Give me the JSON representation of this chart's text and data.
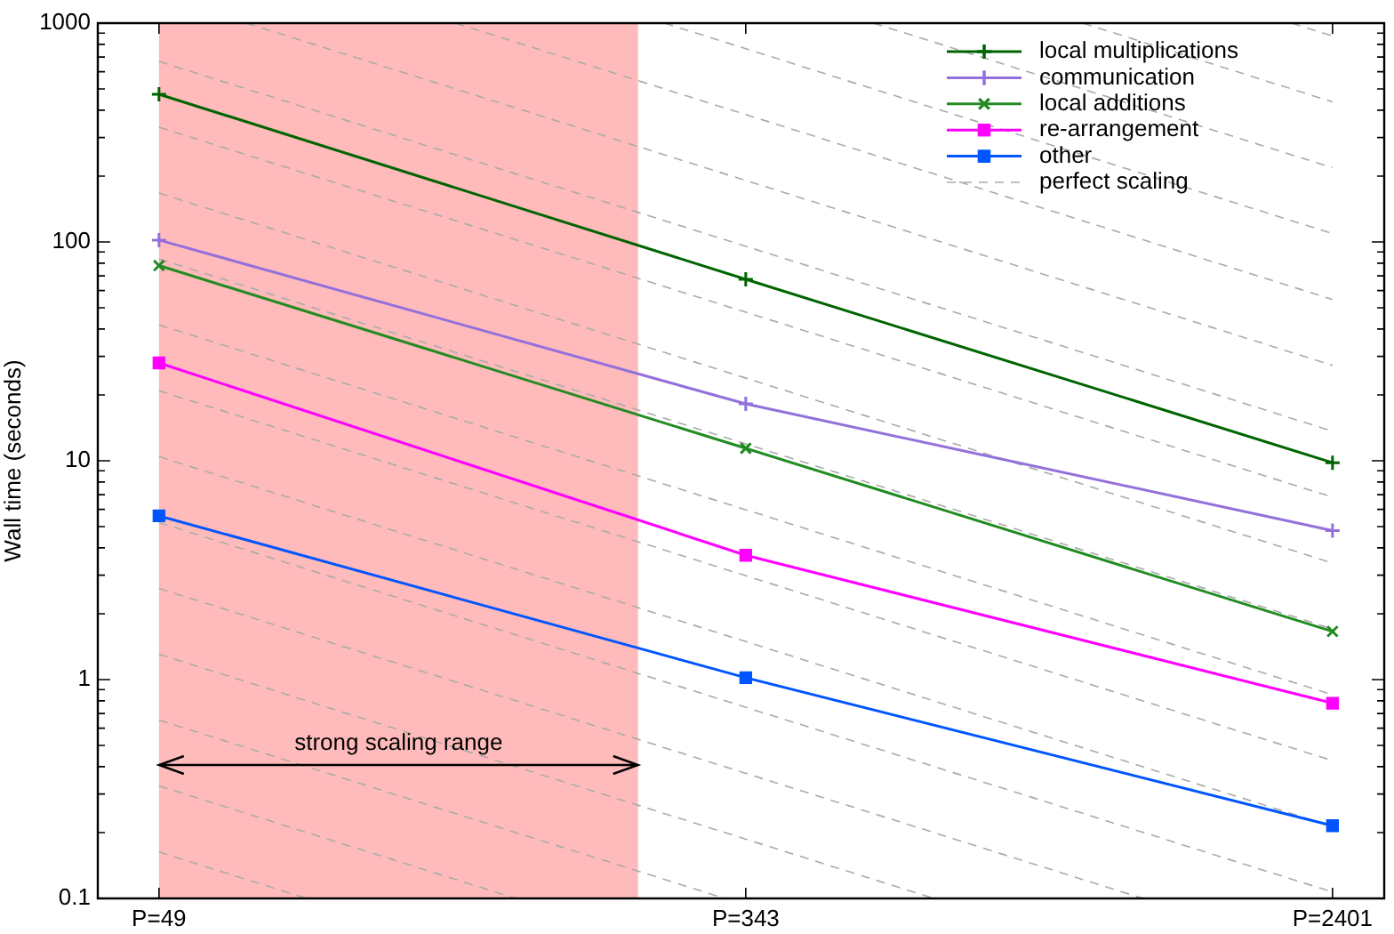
{
  "chart_data": {
    "type": "line",
    "ylabel": "Wall time (seconds)",
    "log": "xy",
    "legend": "top right",
    "x": [
      49,
      343,
      2401
    ],
    "xlim": [
      40,
      2850
    ],
    "xticks": [
      {
        "value": 49,
        "label": "P=49"
      },
      {
        "value": 343,
        "label": "P=343"
      },
      {
        "value": 2401,
        "label": "P=2401"
      }
    ],
    "ylim": [
      0.1,
      1000
    ],
    "yticks": [
      0.1,
      {
        "value": 0.2,
        "label": null
      },
      {
        "value": 0.3,
        "label": null
      },
      {
        "value": 0.4,
        "label": null
      },
      {
        "value": 0.5,
        "label": null
      },
      {
        "value": 0.6,
        "label": null
      },
      {
        "value": 0.7,
        "label": null
      },
      {
        "value": 0.8,
        "label": null
      },
      {
        "value": 0.9,
        "label": null
      },
      1,
      {
        "value": 2,
        "label": null
      },
      {
        "value": 3,
        "label": null
      },
      {
        "value": 4,
        "label": null
      },
      {
        "value": 5,
        "label": null
      },
      {
        "value": 6,
        "label": null
      },
      {
        "value": 7,
        "label": null
      },
      {
        "value": 8,
        "label": null
      },
      {
        "value": 9,
        "label": null
      },
      10,
      {
        "value": 20,
        "label": null
      },
      {
        "value": 30,
        "label": null
      },
      {
        "value": 40,
        "label": null
      },
      {
        "value": 50,
        "label": null
      },
      {
        "value": 60,
        "label": null
      },
      {
        "value": 70,
        "label": null
      },
      {
        "value": 80,
        "label": null
      },
      {
        "value": 90,
        "label": null
      },
      100,
      {
        "value": 200,
        "label": null
      },
      {
        "value": 300,
        "label": null
      },
      {
        "value": 400,
        "label": null
      },
      {
        "value": 500,
        "label": null
      },
      {
        "value": 600,
        "label": null
      },
      {
        "value": 700,
        "label": null
      },
      {
        "value": 800,
        "label": null
      },
      {
        "value": 900,
        "label": null
      },
      1000
    ],
    "bands": [
      {
        "axis": "x",
        "from": 49,
        "to": 240,
        "color": "#ffbbbb"
      }
    ],
    "annotations": [
      "strong scaling range"
    ],
    "series": [
      {
        "name": "local multiplications",
        "color": "#006400",
        "marker": "cross",
        "values": [
          473,
          67.5,
          9.8
        ]
      },
      {
        "name": "communication",
        "color": "#9370db",
        "marker": "cross",
        "values": [
          102,
          18.2,
          4.8
        ]
      },
      {
        "name": "local additions",
        "color": "#228b22",
        "marker": "x",
        "values": [
          78,
          11.4,
          1.66
        ]
      },
      {
        "name": "re-arrangement",
        "color": "#ff00ff",
        "marker": "square",
        "values": [
          28,
          3.7,
          0.78
        ]
      },
      {
        "name": "other",
        "color": "#0055ff",
        "marker": "square",
        "values": [
          5.6,
          1.02,
          0.215
        ]
      },
      {
        "name": "perfect scaling",
        "color": "#aaaaaa",
        "line_style": "dashed",
        "marker": "none",
        "x": [
          49,
          80
        ],
        "values": [
          0.163,
          0.1
        ]
      },
      {
        "color": "#aaaaaa",
        "line_style": "dashed",
        "marker": "none",
        "x": [
          49,
          160
        ],
        "values": [
          0.327,
          0.1
        ]
      },
      {
        "color": "#aaaaaa",
        "line_style": "dashed",
        "marker": "none",
        "x": [
          49,
          320
        ],
        "values": [
          0.653,
          0.1
        ]
      },
      {
        "color": "#aaaaaa",
        "line_style": "dashed",
        "marker": "none",
        "x": [
          49,
          640
        ],
        "values": [
          1.306,
          0.1
        ]
      },
      {
        "color": "#aaaaaa",
        "line_style": "dashed",
        "marker": "none",
        "x": [
          49,
          1280
        ],
        "values": [
          2.61,
          0.1
        ]
      },
      {
        "color": "#aaaaaa",
        "line_style": "dashed",
        "marker": "none",
        "x": [
          49,
          2401
        ],
        "values": [
          5.22,
          0.107
        ]
      },
      {
        "color": "#aaaaaa",
        "line_style": "dashed",
        "marker": "none",
        "x": [
          49,
          2401
        ],
        "values": [
          10.45,
          0.213
        ]
      },
      {
        "color": "#aaaaaa",
        "line_style": "dashed",
        "marker": "none",
        "x": [
          49,
          2401
        ],
        "values": [
          20.9,
          0.426
        ]
      },
      {
        "color": "#aaaaaa",
        "line_style": "dashed",
        "marker": "none",
        "x": [
          49,
          2401
        ],
        "values": [
          41.8,
          0.853
        ]
      },
      {
        "color": "#aaaaaa",
        "line_style": "dashed",
        "marker": "none",
        "x": [
          49,
          2401
        ],
        "values": [
          83.6,
          1.706
        ]
      },
      {
        "color": "#aaaaaa",
        "line_style": "dashed",
        "marker": "none",
        "x": [
          49,
          2401
        ],
        "values": [
          167.2,
          3.41
        ]
      },
      {
        "color": "#aaaaaa",
        "line_style": "dashed",
        "marker": "none",
        "x": [
          49,
          2401
        ],
        "values": [
          334.4,
          6.82
        ]
      },
      {
        "color": "#aaaaaa",
        "line_style": "dashed",
        "marker": "none",
        "x": [
          49,
          2401
        ],
        "values": [
          668.7,
          13.65
        ]
      },
      {
        "color": "#aaaaaa",
        "line_style": "dashed",
        "marker": "none",
        "x": [
          65.5,
          2401
        ],
        "values": [
          1000,
          27.3
        ]
      },
      {
        "color": "#aaaaaa",
        "line_style": "dashed",
        "marker": "none",
        "x": [
          131,
          2401
        ],
        "values": [
          1000,
          54.6
        ]
      },
      {
        "color": "#aaaaaa",
        "line_style": "dashed",
        "marker": "none",
        "x": [
          262,
          2401
        ],
        "values": [
          1000,
          109.2
        ]
      },
      {
        "color": "#aaaaaa",
        "line_style": "dashed",
        "marker": "none",
        "x": [
          524,
          2401
        ],
        "values": [
          1000,
          218.4
        ]
      },
      {
        "color": "#aaaaaa",
        "line_style": "dashed",
        "marker": "none",
        "x": [
          1049,
          2401
        ],
        "values": [
          1000,
          436.7
        ]
      },
      {
        "color": "#aaaaaa",
        "line_style": "dashed",
        "marker": "none",
        "x": [
          2097,
          2401
        ],
        "values": [
          1000,
          873.4
        ]
      }
    ]
  }
}
